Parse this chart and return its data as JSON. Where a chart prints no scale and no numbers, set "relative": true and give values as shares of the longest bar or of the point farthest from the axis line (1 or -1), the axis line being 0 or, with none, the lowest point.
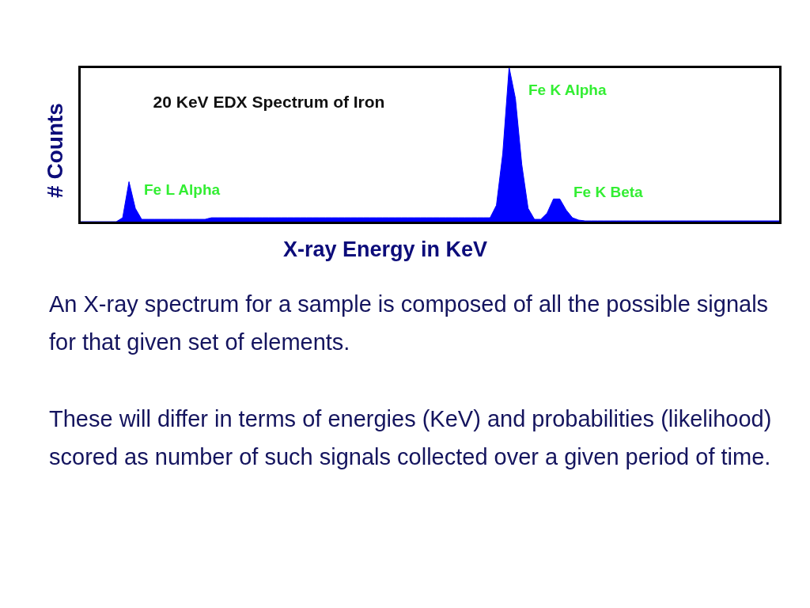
{
  "chart_data": {
    "type": "area",
    "relative": true,
    "title": "20 KeV EDX Spectrum of Iron",
    "xlabel": "X-ray Energy in KeV",
    "ylabel": "# Counts",
    "color": "#0000ff",
    "categories": [
      null,
      null,
      null,
      null,
      null,
      null,
      null,
      null,
      null,
      null,
      null,
      null,
      null,
      null,
      null,
      null,
      null,
      null,
      null,
      null,
      null,
      null,
      null,
      null,
      null,
      null,
      null,
      null,
      null,
      null,
      null,
      null,
      null,
      null,
      null,
      null,
      null,
      null,
      null,
      null,
      null,
      null,
      null,
      null,
      null,
      null,
      null,
      null,
      null,
      null,
      null,
      null,
      null,
      null,
      null,
      null,
      null,
      null,
      null,
      null,
      null,
      null,
      null,
      null,
      null,
      null,
      null,
      null,
      null,
      null,
      null,
      null,
      null,
      null,
      null,
      null,
      null,
      null,
      null,
      null,
      null,
      null,
      null,
      null,
      null,
      null,
      null,
      null,
      null,
      null,
      null,
      null,
      null,
      null,
      null,
      null,
      null,
      null,
      null,
      null,
      null,
      null,
      null,
      null,
      null,
      null,
      null,
      null,
      null,
      null,
      null,
      null
    ],
    "values": [
      0.015,
      0.015,
      0.015,
      0.015,
      0.015,
      0.015,
      0.015,
      0.04,
      0.27,
      0.1,
      0.03,
      0.03,
      0.03,
      0.03,
      0.03,
      0.03,
      0.03,
      0.03,
      0.03,
      0.03,
      0.03,
      0.04,
      0.04,
      0.04,
      0.04,
      0.04,
      0.04,
      0.04,
      0.04,
      0.04,
      0.04,
      0.04,
      0.04,
      0.04,
      0.04,
      0.04,
      0.04,
      0.04,
      0.04,
      0.04,
      0.04,
      0.04,
      0.04,
      0.04,
      0.04,
      0.04,
      0.04,
      0.04,
      0.04,
      0.04,
      0.04,
      0.04,
      0.04,
      0.04,
      0.04,
      0.04,
      0.04,
      0.04,
      0.04,
      0.04,
      0.04,
      0.04,
      0.04,
      0.04,
      0.04,
      0.04,
      0.12,
      0.45,
      1.0,
      0.8,
      0.38,
      0.1,
      0.03,
      0.03,
      0.07,
      0.16,
      0.16,
      0.09,
      0.04,
      0.025,
      0.02,
      0.02,
      0.02,
      0.02,
      0.02,
      0.02,
      0.02,
      0.02,
      0.02,
      0.02,
      0.02,
      0.02,
      0.02,
      0.02,
      0.02,
      0.02,
      0.02,
      0.02,
      0.02,
      0.02,
      0.02,
      0.02,
      0.02,
      0.02,
      0.02,
      0.02,
      0.02,
      0.02,
      0.02,
      0.02,
      0.02,
      0.02
    ],
    "annotations": [
      "Fe L Alpha",
      "Fe K Alpha",
      "Fe K Beta",
      "An X-ray spectrum for a sample is composed of all the possible signals for that given set of elements.",
      "These will differ in terms of energies (KeV) and probabilities (likelihood) scored as number of such signals collected over a given period of time."
    ]
  }
}
